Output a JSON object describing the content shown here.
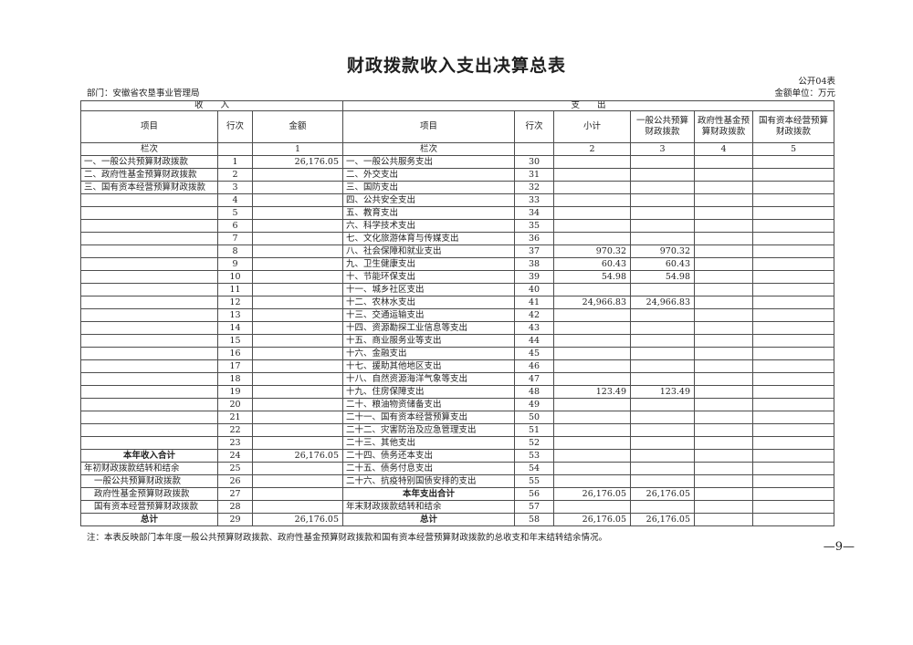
{
  "page": {
    "title": "财政拨款收入支出决算总表",
    "table_code": "公开04表",
    "unit_label": "金额单位：万元",
    "department": "部门：安徽省农垦事业管理局",
    "note": "注：本表反映部门本年度一般公共预算财政拨款、政府性基金预算财政拨款和国有资本经营预算财政拨款的总收支和年末结转结余情况。",
    "page_number": "—9—"
  },
  "table": {
    "section_headers": {
      "income": "收　　入",
      "expense": "支　　出"
    },
    "column_headers": {
      "income_item": "项目",
      "income_line": "行次",
      "income_amount": "金额",
      "expense_item": "项目",
      "expense_line": "行次",
      "expense_subtotal": "小计",
      "expense_general": "一般公共预算财政拨款",
      "expense_fund": "政府性基金预算财政拨款",
      "expense_capital": "国有资本经营预算财政拨款"
    },
    "lanci": {
      "income_item": "栏次",
      "income_line": "",
      "income_amount": "1",
      "expense_item": "栏次",
      "expense_line": "",
      "expense_subtotal": "2",
      "expense_general": "3",
      "expense_fund": "4",
      "expense_capital": "5"
    },
    "rows": [
      {
        "income": {
          "item": "一、一般公共预算财政拨款",
          "style": "normal",
          "line": "1",
          "amount": "26,176.05"
        },
        "expense": {
          "item": "一、一般公共服务支出",
          "style": "normal",
          "line": "30",
          "subtotal": "",
          "general": "",
          "fund": "",
          "capital": ""
        }
      },
      {
        "income": {
          "item": "二、政府性基金预算财政拨款",
          "style": "normal",
          "line": "2",
          "amount": ""
        },
        "expense": {
          "item": "二、外交支出",
          "style": "normal",
          "line": "31",
          "subtotal": "",
          "general": "",
          "fund": "",
          "capital": ""
        }
      },
      {
        "income": {
          "item": "三、国有资本经营预算财政拨款",
          "style": "normal",
          "line": "3",
          "amount": ""
        },
        "expense": {
          "item": "三、国防支出",
          "style": "normal",
          "line": "32",
          "subtotal": "",
          "general": "",
          "fund": "",
          "capital": ""
        }
      },
      {
        "income": {
          "item": "",
          "style": "normal",
          "line": "4",
          "amount": ""
        },
        "expense": {
          "item": "四、公共安全支出",
          "style": "normal",
          "line": "33",
          "subtotal": "",
          "general": "",
          "fund": "",
          "capital": ""
        }
      },
      {
        "income": {
          "item": "",
          "style": "normal",
          "line": "5",
          "amount": ""
        },
        "expense": {
          "item": "五、教育支出",
          "style": "normal",
          "line": "34",
          "subtotal": "",
          "general": "",
          "fund": "",
          "capital": ""
        }
      },
      {
        "income": {
          "item": "",
          "style": "normal",
          "line": "6",
          "amount": ""
        },
        "expense": {
          "item": "六、科学技术支出",
          "style": "normal",
          "line": "35",
          "subtotal": "",
          "general": "",
          "fund": "",
          "capital": ""
        }
      },
      {
        "income": {
          "item": "",
          "style": "normal",
          "line": "7",
          "amount": ""
        },
        "expense": {
          "item": "七、文化旅游体育与传媒支出",
          "style": "normal",
          "line": "36",
          "subtotal": "",
          "general": "",
          "fund": "",
          "capital": ""
        }
      },
      {
        "income": {
          "item": "",
          "style": "normal",
          "line": "8",
          "amount": ""
        },
        "expense": {
          "item": "八、社会保障和就业支出",
          "style": "normal",
          "line": "37",
          "subtotal": "970.32",
          "general": "970.32",
          "fund": "",
          "capital": ""
        }
      },
      {
        "income": {
          "item": "",
          "style": "normal",
          "line": "9",
          "amount": ""
        },
        "expense": {
          "item": "九、卫生健康支出",
          "style": "normal",
          "line": "38",
          "subtotal": "60.43",
          "general": "60.43",
          "fund": "",
          "capital": ""
        }
      },
      {
        "income": {
          "item": "",
          "style": "normal",
          "line": "10",
          "amount": ""
        },
        "expense": {
          "item": "十、节能环保支出",
          "style": "normal",
          "line": "39",
          "subtotal": "54.98",
          "general": "54.98",
          "fund": "",
          "capital": ""
        }
      },
      {
        "income": {
          "item": "",
          "style": "normal",
          "line": "11",
          "amount": ""
        },
        "expense": {
          "item": "十一、城乡社区支出",
          "style": "normal",
          "line": "40",
          "subtotal": "",
          "general": "",
          "fund": "",
          "capital": ""
        }
      },
      {
        "income": {
          "item": "",
          "style": "normal",
          "line": "12",
          "amount": ""
        },
        "expense": {
          "item": "十二、农林水支出",
          "style": "normal",
          "line": "41",
          "subtotal": "24,966.83",
          "general": "24,966.83",
          "fund": "",
          "capital": ""
        }
      },
      {
        "income": {
          "item": "",
          "style": "normal",
          "line": "13",
          "amount": ""
        },
        "expense": {
          "item": "十三、交通运输支出",
          "style": "normal",
          "line": "42",
          "subtotal": "",
          "general": "",
          "fund": "",
          "capital": ""
        }
      },
      {
        "income": {
          "item": "",
          "style": "normal",
          "line": "14",
          "amount": ""
        },
        "expense": {
          "item": "十四、资源勘探工业信息等支出",
          "style": "normal",
          "line": "43",
          "subtotal": "",
          "general": "",
          "fund": "",
          "capital": ""
        }
      },
      {
        "income": {
          "item": "",
          "style": "normal",
          "line": "15",
          "amount": ""
        },
        "expense": {
          "item": "十五、商业服务业等支出",
          "style": "normal",
          "line": "44",
          "subtotal": "",
          "general": "",
          "fund": "",
          "capital": ""
        }
      },
      {
        "income": {
          "item": "",
          "style": "normal",
          "line": "16",
          "amount": ""
        },
        "expense": {
          "item": "十六、金融支出",
          "style": "normal",
          "line": "45",
          "subtotal": "",
          "general": "",
          "fund": "",
          "capital": ""
        }
      },
      {
        "income": {
          "item": "",
          "style": "normal",
          "line": "17",
          "amount": ""
        },
        "expense": {
          "item": "十七、援助其他地区支出",
          "style": "normal",
          "line": "46",
          "subtotal": "",
          "general": "",
          "fund": "",
          "capital": ""
        }
      },
      {
        "income": {
          "item": "",
          "style": "normal",
          "line": "18",
          "amount": ""
        },
        "expense": {
          "item": "十八、自然资源海洋气象等支出",
          "style": "normal",
          "line": "47",
          "subtotal": "",
          "general": "",
          "fund": "",
          "capital": ""
        }
      },
      {
        "income": {
          "item": "",
          "style": "normal",
          "line": "19",
          "amount": ""
        },
        "expense": {
          "item": "十九、住房保障支出",
          "style": "normal",
          "line": "48",
          "subtotal": "123.49",
          "general": "123.49",
          "fund": "",
          "capital": ""
        }
      },
      {
        "income": {
          "item": "",
          "style": "normal",
          "line": "20",
          "amount": ""
        },
        "expense": {
          "item": "二十、粮油物资储备支出",
          "style": "normal",
          "line": "49",
          "subtotal": "",
          "general": "",
          "fund": "",
          "capital": ""
        }
      },
      {
        "income": {
          "item": "",
          "style": "normal",
          "line": "21",
          "amount": ""
        },
        "expense": {
          "item": "二十一、国有资本经营预算支出",
          "style": "normal",
          "line": "50",
          "subtotal": "",
          "general": "",
          "fund": "",
          "capital": ""
        }
      },
      {
        "income": {
          "item": "",
          "style": "normal",
          "line": "22",
          "amount": ""
        },
        "expense": {
          "item": "二十二、灾害防治及应急管理支出",
          "style": "normal",
          "line": "51",
          "subtotal": "",
          "general": "",
          "fund": "",
          "capital": ""
        }
      },
      {
        "income": {
          "item": "",
          "style": "normal",
          "line": "23",
          "amount": ""
        },
        "expense": {
          "item": "二十三、其他支出",
          "style": "normal",
          "line": "52",
          "subtotal": "",
          "general": "",
          "fund": "",
          "capital": ""
        }
      },
      {
        "income": {
          "item": "本年收入合计",
          "style": "total",
          "line": "24",
          "amount": "26,176.05"
        },
        "expense": {
          "item": "二十四、债务还本支出",
          "style": "normal",
          "line": "53",
          "subtotal": "",
          "general": "",
          "fund": "",
          "capital": ""
        }
      },
      {
        "income": {
          "item": "年初财政拨款结转和结余",
          "style": "normal",
          "line": "25",
          "amount": ""
        },
        "expense": {
          "item": "二十五、债务付息支出",
          "style": "normal",
          "line": "54",
          "subtotal": "",
          "general": "",
          "fund": "",
          "capital": ""
        }
      },
      {
        "income": {
          "item": "一般公共预算财政拨款",
          "style": "indent",
          "line": "26",
          "amount": ""
        },
        "expense": {
          "item": "二十六、抗疫特别国债安排的支出",
          "style": "normal",
          "line": "55",
          "subtotal": "",
          "general": "",
          "fund": "",
          "capital": ""
        }
      },
      {
        "income": {
          "item": "政府性基金预算财政拨款",
          "style": "indent",
          "line": "27",
          "amount": ""
        },
        "expense": {
          "item": "本年支出合计",
          "style": "total",
          "line": "56",
          "subtotal": "26,176.05",
          "general": "26,176.05",
          "fund": "",
          "capital": ""
        }
      },
      {
        "income": {
          "item": "国有资本经营预算财政拨款",
          "style": "indent",
          "line": "28",
          "amount": ""
        },
        "expense": {
          "item": "年末财政拨款结转和结余",
          "style": "normal",
          "line": "57",
          "subtotal": "",
          "general": "",
          "fund": "",
          "capital": ""
        }
      },
      {
        "income": {
          "item": "总计",
          "style": "total",
          "line": "29",
          "amount": "26,176.05"
        },
        "expense": {
          "item": "总计",
          "style": "total",
          "line": "58",
          "subtotal": "26,176.05",
          "general": "26,176.05",
          "fund": "",
          "capital": ""
        }
      }
    ]
  }
}
